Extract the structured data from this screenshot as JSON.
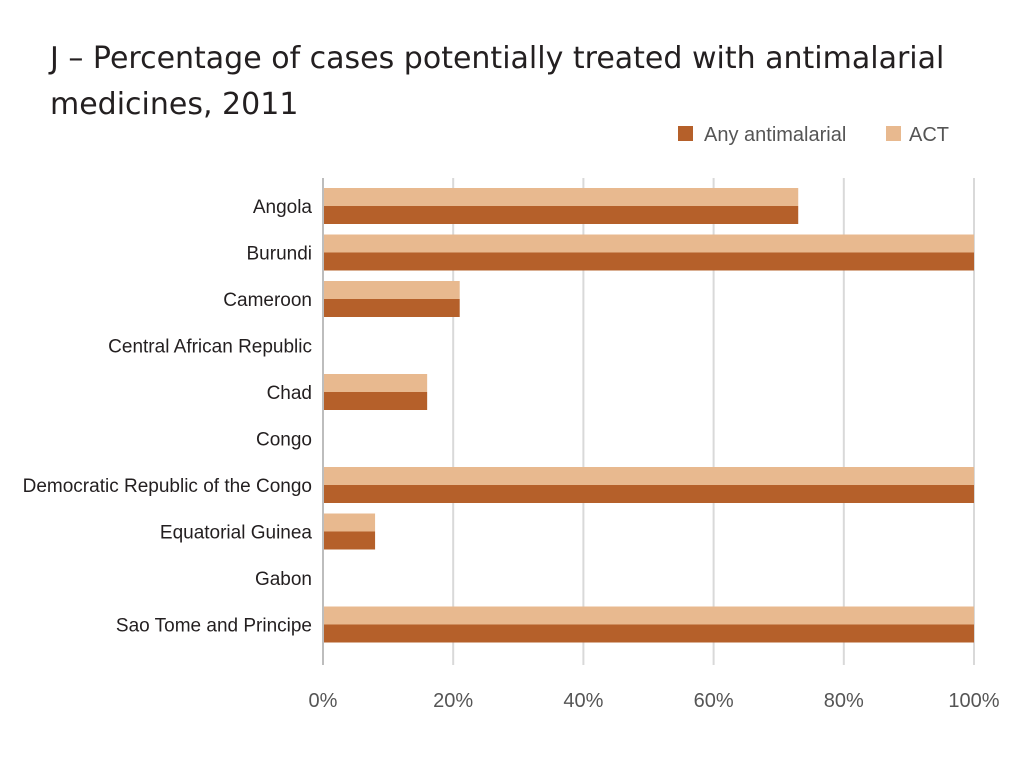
{
  "chart_data": {
    "type": "bar",
    "orientation": "horizontal",
    "title": "J – Percentage of cases potentially treated with antimalarial medicines, 2011",
    "categories": [
      "Angola",
      "Burundi",
      "Cameroon",
      "Central African Republic",
      "Chad",
      "Congo",
      "Democratic Republic of the Congo",
      "Equatorial Guinea",
      "Gabon",
      "Sao Tome and Principe"
    ],
    "series": [
      {
        "name": "Any antimalarial",
        "color": "#b5602a",
        "values": [
          73,
          100,
          21,
          0,
          16,
          0,
          100,
          8,
          0,
          100
        ]
      },
      {
        "name": "ACT",
        "color": "#e8b98f",
        "values": [
          73,
          100,
          21,
          0,
          16,
          0,
          100,
          8,
          0,
          100
        ]
      }
    ],
    "xlim": [
      0,
      100
    ],
    "xticks": [
      "0%",
      "20%",
      "40%",
      "60%",
      "80%",
      "100%"
    ],
    "grid": true,
    "legend_position": "top-right"
  }
}
